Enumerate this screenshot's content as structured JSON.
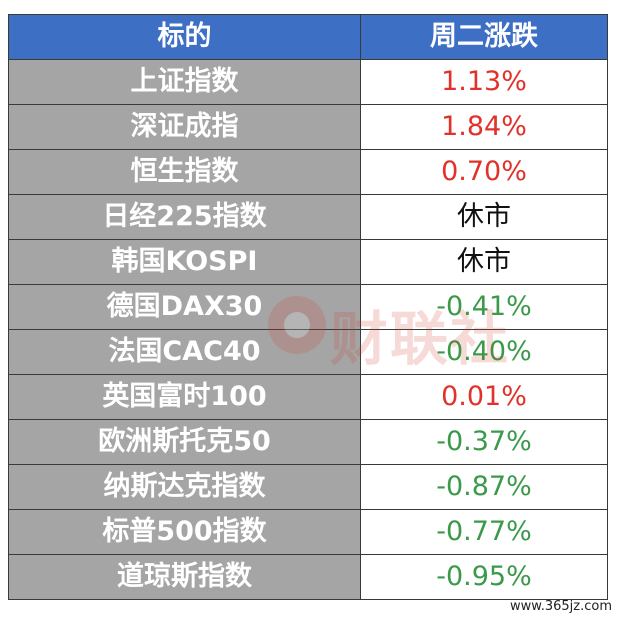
{
  "header": {
    "col1": "标的",
    "col2": "周二涨跌"
  },
  "rows": [
    {
      "name": "上证指数",
      "change": "1.13%",
      "direction": "up"
    },
    {
      "name": "深证成指",
      "change": "1.84%",
      "direction": "up"
    },
    {
      "name": "恒生指数",
      "change": "0.70%",
      "direction": "up"
    },
    {
      "name": "日经225指数",
      "change": "休市",
      "direction": "flat"
    },
    {
      "name": "韩国KOSPI",
      "change": "休市",
      "direction": "flat"
    },
    {
      "name": "德国DAX30",
      "change": "-0.41%",
      "direction": "down"
    },
    {
      "name": "法国CAC40",
      "change": "-0.40%",
      "direction": "down"
    },
    {
      "name": "英国富时100",
      "change": "0.01%",
      "direction": "up"
    },
    {
      "name": "欧洲斯托克50",
      "change": "-0.37%",
      "direction": "down"
    },
    {
      "name": "纳斯达克指数",
      "change": "-0.87%",
      "direction": "down"
    },
    {
      "name": "标普500指数",
      "change": "-0.77%",
      "direction": "down"
    },
    {
      "name": "道琼斯指数",
      "change": "-0.95%",
      "direction": "down"
    }
  ],
  "colors": {
    "header_bg": "#3d6fc4",
    "name_bg": "#a5a5a5",
    "up": "#e0322a",
    "down": "#3a9a4a",
    "flat": "#111111"
  },
  "watermark": {
    "text": "财联社",
    "icon": "cls-logo-icon"
  },
  "site_url": "www.365jz.com"
}
